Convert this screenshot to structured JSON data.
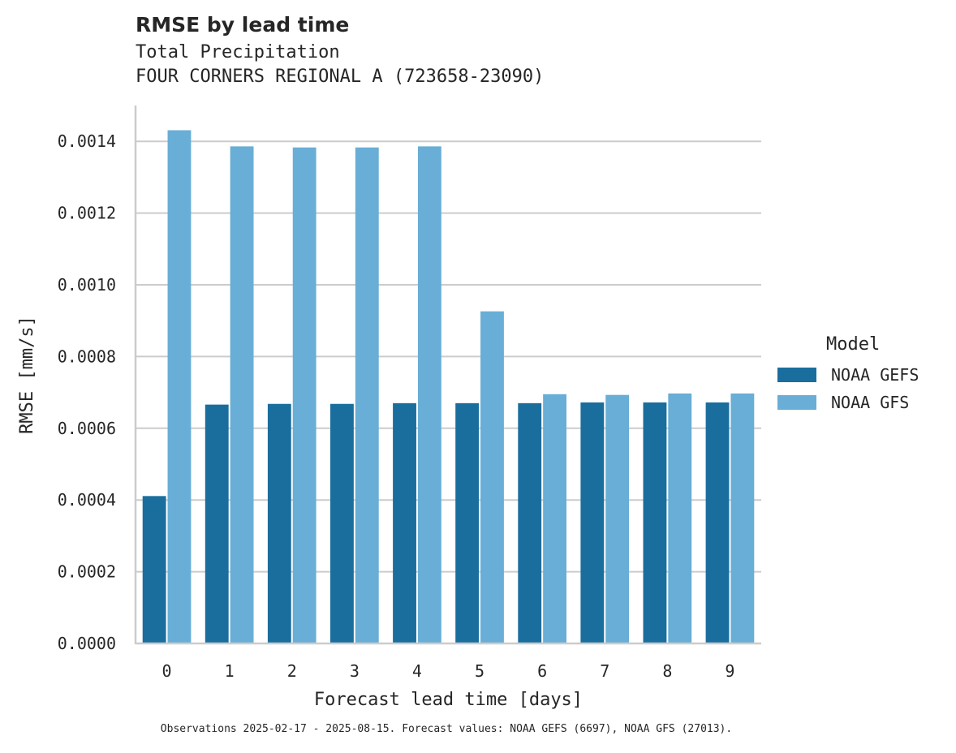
{
  "header": {
    "title": "RMSE by lead time",
    "subtitle_line1": "Total Precipitation",
    "subtitle_line2": "FOUR CORNERS REGIONAL A (723658-23090)"
  },
  "footnote": "Observations 2025-02-17 - 2025-08-15. Forecast values: NOAA GEFS (6697), NOAA GFS (27013).",
  "legend": {
    "title": "Model",
    "items": [
      {
        "label": "NOAA GEFS",
        "color": "#1a6e9e"
      },
      {
        "label": "NOAA GFS",
        "color": "#68aed6"
      }
    ]
  },
  "chart_data": {
    "type": "bar",
    "title": "RMSE by lead time",
    "xlabel": "Forecast lead time [days]",
    "ylabel": "RMSE [mm/s]",
    "categories": [
      "0",
      "1",
      "2",
      "3",
      "4",
      "5",
      "6",
      "7",
      "8",
      "9"
    ],
    "ylim": [
      0,
      0.0015
    ],
    "yticks": [
      "0.0000",
      "0.0002",
      "0.0004",
      "0.0006",
      "0.0008",
      "0.0010",
      "0.0012",
      "0.0014"
    ],
    "ytick_values": [
      0,
      0.0002,
      0.0004,
      0.0006,
      0.0008,
      0.001,
      0.0012,
      0.0014
    ],
    "grid": "horizontal",
    "legend_position": "right",
    "series": [
      {
        "name": "NOAA GEFS",
        "color": "#1a6e9e",
        "values": [
          0.000411,
          0.000666,
          0.000668,
          0.000668,
          0.00067,
          0.00067,
          0.00067,
          0.000672,
          0.000672,
          0.000672
        ]
      },
      {
        "name": "NOAA GFS",
        "color": "#68aed6",
        "values": [
          0.001431,
          0.001386,
          0.001383,
          0.001383,
          0.001386,
          0.000926,
          0.000695,
          0.000693,
          0.000697,
          0.000697
        ]
      }
    ]
  }
}
